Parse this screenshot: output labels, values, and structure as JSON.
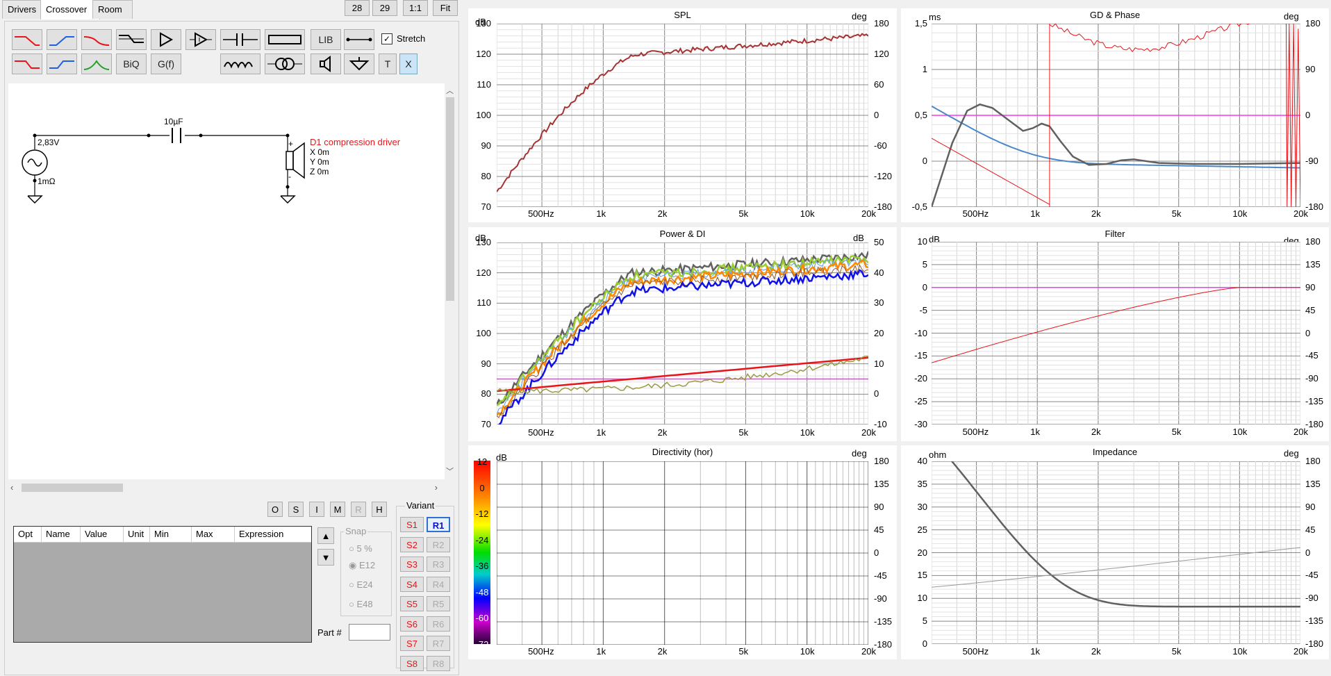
{
  "tabs": [
    "Drivers",
    "Crossover",
    "Room"
  ],
  "top_buttons": [
    "28",
    "29",
    "1:1",
    "Fit"
  ],
  "toolbar": {
    "lib": "LIB",
    "biq": "BiQ",
    "gf": "G(f)",
    "t": "T",
    "x": "X",
    "stretch_label": "Stretch",
    "stretch_checked": true
  },
  "schematic": {
    "source_voltage": "2,83V",
    "source_resistance": "1mΩ",
    "capacitor": "10µF",
    "driver_name": "D1 compression driver",
    "driver_x": "X 0m",
    "driver_y": "Y 0m",
    "driver_z": "Z 0m",
    "plus": "+",
    "minus": "-"
  },
  "opt_buttons": [
    "O",
    "S",
    "I",
    "M",
    "R",
    "H"
  ],
  "table": {
    "columns": [
      "Opt",
      "Name",
      "Value",
      "Unit",
      "Min",
      "Max",
      "Expression"
    ]
  },
  "snap": {
    "title": "Snap",
    "options": [
      "5 %",
      "E12",
      "E24",
      "E48"
    ],
    "selected": "E12"
  },
  "part_label": "Part #",
  "variant": {
    "title": "Variant",
    "s": [
      "S1",
      "S2",
      "S3",
      "S4",
      "S5",
      "S6",
      "S7",
      "S8"
    ],
    "r": [
      "R1",
      "R2",
      "R3",
      "R4",
      "R5",
      "R6",
      "R7",
      "R8"
    ],
    "selected": "R1"
  },
  "x_ticks": [
    "500Hz",
    "1k",
    "2k",
    "5k",
    "10k",
    "20k"
  ],
  "colors": {
    "red": "#e8141a",
    "blue": "#1010e8",
    "grey": "#606060",
    "magenta": "#ff30ff",
    "steel": "#4a88c8"
  },
  "graphs": {
    "spl": {
      "title": "SPL",
      "y_unit": "dB",
      "y2_unit": "deg",
      "y_ticks": [
        "130",
        "120",
        "110",
        "100",
        "90",
        "80",
        "70"
      ],
      "y2_ticks": [
        "180",
        "120",
        "60",
        "0",
        "-60",
        "-120",
        "-180"
      ]
    },
    "gd": {
      "title": "GD & Phase",
      "y_unit": "ms",
      "y2_unit": "deg",
      "y_ticks": [
        "1,5",
        "1",
        "0,5",
        "0",
        "-0,5"
      ],
      "y2_ticks": [
        "180",
        "90",
        "0",
        "-90",
        "-180"
      ]
    },
    "power": {
      "title": "Power & DI",
      "y_unit": "dB",
      "y2_unit": "dB",
      "y_ticks": [
        "130",
        "120",
        "110",
        "100",
        "90",
        "80",
        "70"
      ],
      "y2_ticks": [
        "50",
        "40",
        "30",
        "20",
        "10",
        "0",
        "-10"
      ]
    },
    "filter": {
      "title": "Filter",
      "y_unit": "dB",
      "y2_unit": "deg",
      "y_ticks": [
        "10",
        "5",
        "0",
        "-5",
        "-10",
        "-15",
        "-20",
        "-25",
        "-30"
      ],
      "y2_ticks": [
        "180",
        "135",
        "90",
        "45",
        "0",
        "-45",
        "-90",
        "-135",
        "-180"
      ]
    },
    "directivity": {
      "title": "Directivity (hor)",
      "y_unit": "dB",
      "y2_unit": "deg",
      "scale_ticks": [
        "12",
        "0",
        "-12",
        "-24",
        "-36",
        "-48",
        "-60",
        "-72"
      ],
      "y2_ticks": [
        "180",
        "135",
        "90",
        "45",
        "0",
        "-45",
        "-90",
        "-135",
        "-180"
      ]
    },
    "impedance": {
      "title": "Impedance",
      "y_unit": "ohm",
      "y2_unit": "deg",
      "y_ticks": [
        "40",
        "35",
        "30",
        "25",
        "20",
        "15",
        "10",
        "5",
        "0"
      ],
      "y2_ticks": [
        "180",
        "135",
        "90",
        "45",
        "0",
        "-45",
        "-90",
        "-135",
        "-180"
      ]
    }
  }
}
